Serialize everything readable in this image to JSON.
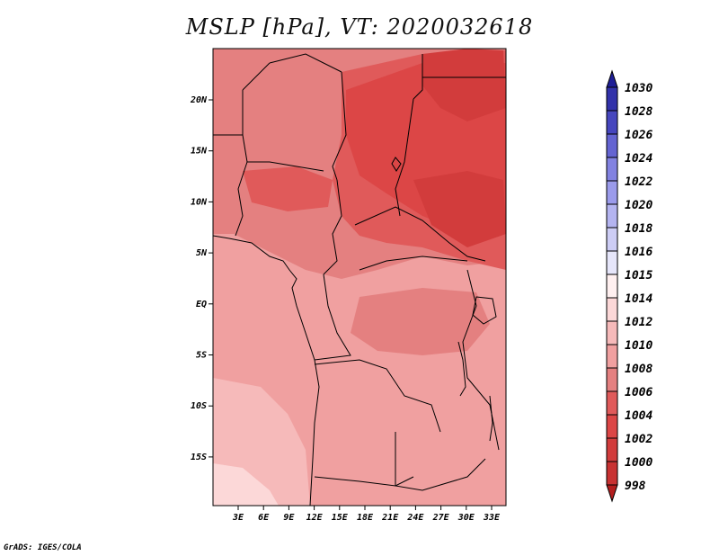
{
  "title": "MSLP [hPa], VT: 2020032618",
  "credit": "GrADS: IGES/COLA",
  "map": {
    "field": "MSLP",
    "lat_labels": [
      "20N",
      "15N",
      "10N",
      "5N",
      "EQ",
      "5S",
      "10S",
      "15S"
    ],
    "lon_labels": [
      "3E",
      "6E",
      "9E",
      "12E",
      "15E",
      "18E",
      "21E",
      "24E",
      "27E",
      "30E",
      "33E"
    ]
  },
  "colorbar": {
    "levels": [
      "998",
      "1000",
      "1002",
      "1004",
      "1006",
      "1008",
      "1010",
      "1012",
      "1014",
      "1015",
      "1016",
      "1018",
      "1020",
      "1022",
      "1024",
      "1026",
      "1028",
      "1030"
    ],
    "colors": [
      "#b41e1e",
      "#c83232",
      "#d23c3c",
      "#dc4646",
      "#e05a5a",
      "#e48080",
      "#f0a0a0",
      "#f6baba",
      "#fcd8d8",
      "#fff0f0",
      "#e6e6fa",
      "#cdcdf5",
      "#b4b4f0",
      "#9b9beb",
      "#8282e1",
      "#6464d2",
      "#4646be",
      "#3232aa",
      "#1e1e96"
    ]
  }
}
